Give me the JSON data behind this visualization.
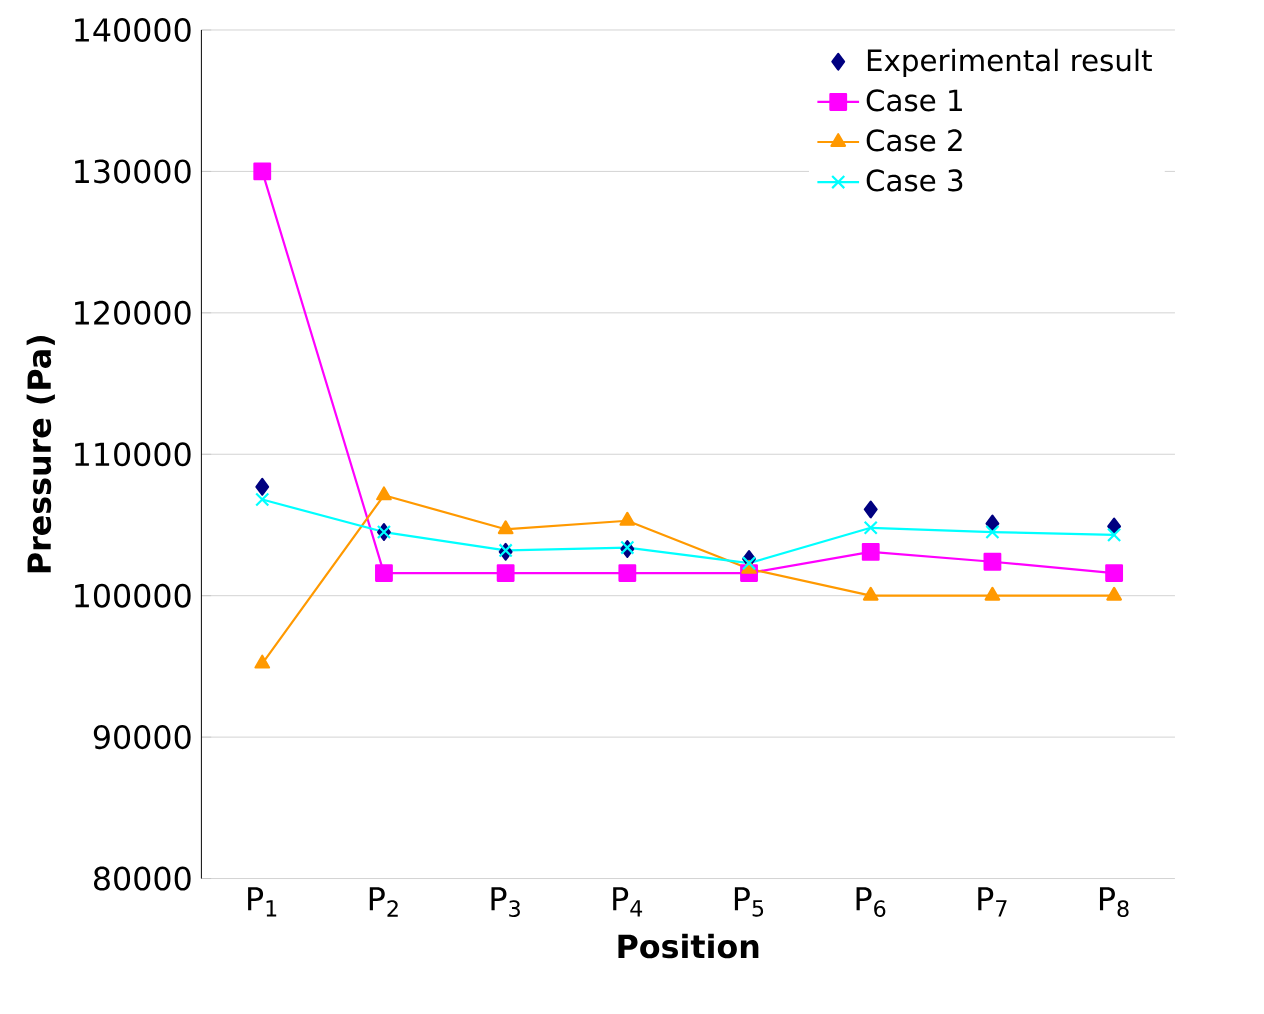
{
  "chart_data": {
    "type": "line",
    "xlabel": "Position",
    "ylabel": "Pressure (Pa)",
    "categories": [
      "P$_{1}$",
      "P$_{2}$",
      "P$_{3}$",
      "P$_{4}$",
      "P$_{5}$",
      "P$_{6}$",
      "P$_{7}$",
      "P$_{8}$"
    ],
    "ylim": [
      80000,
      140000
    ],
    "yticks": [
      80000,
      90000,
      100000,
      110000,
      120000,
      130000,
      140000
    ],
    "grid": "y",
    "legend": "top right",
    "series": [
      {
        "name": "Experimental result",
        "type": "scatter",
        "marker": "diamond",
        "color": "#000080",
        "values": [
          107700,
          104500,
          103100,
          103300,
          102600,
          106100,
          105100,
          104900
        ]
      },
      {
        "name": "Case 1",
        "marker": "square",
        "color": "#ff00ff",
        "values": [
          130000,
          101600,
          101600,
          101600,
          101600,
          103100,
          102400,
          101600
        ]
      },
      {
        "name": "Case 2",
        "marker": "triangle",
        "color": "#ff9900",
        "values": [
          95200,
          107100,
          104700,
          105300,
          101900,
          100000,
          100000,
          100000
        ]
      },
      {
        "name": "Case 3",
        "marker": "cross",
        "color": "#00ffff",
        "values": [
          106800,
          104500,
          103200,
          103400,
          102300,
          104800,
          104500,
          104300
        ]
      }
    ]
  }
}
